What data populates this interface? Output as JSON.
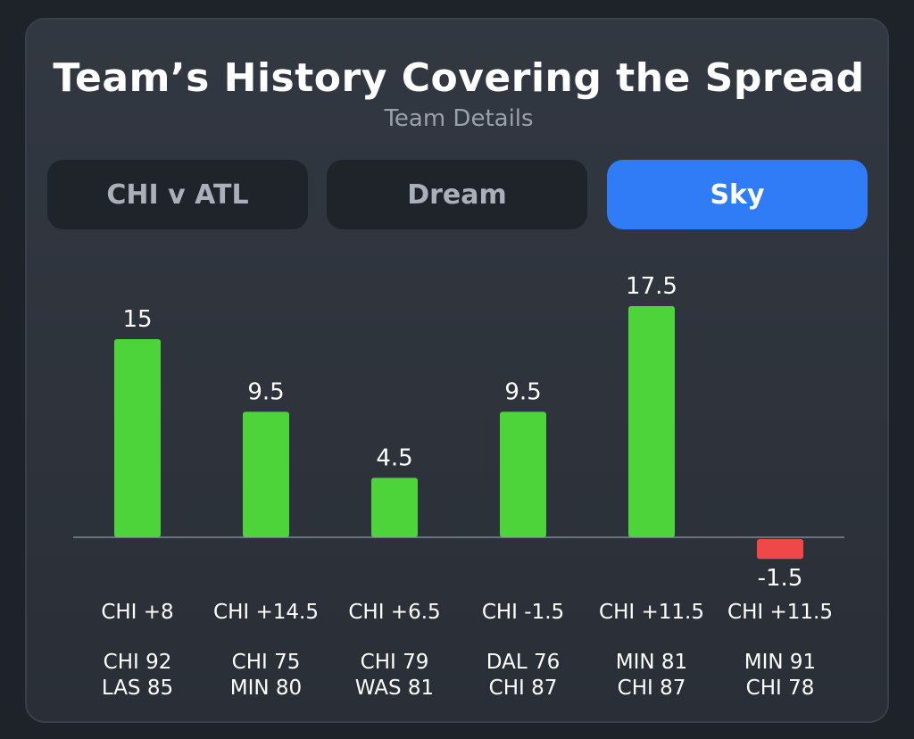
{
  "title": "Team’s History Covering the Spread",
  "subtitle": "Team Details",
  "tabs": [
    {
      "label": "CHI v ATL",
      "active": false
    },
    {
      "label": "Dream",
      "active": false
    },
    {
      "label": "Sky",
      "active": true
    }
  ],
  "colors": {
    "positive": "#4cd43a",
    "negative": "#f04848",
    "active_tab": "#2f7cf6",
    "baseline": "#6b7380"
  },
  "chart_data": {
    "type": "bar",
    "categories": [
      "CHI +8",
      "CHI +14.5",
      "CHI +6.5",
      "CHI -1.5",
      "CHI +11.5",
      "CHI +11.5"
    ],
    "values": [
      15,
      9.5,
      4.5,
      9.5,
      17.5,
      -1.5
    ],
    "value_labels": [
      "15",
      "9.5",
      "4.5",
      "9.5",
      "17.5",
      "-1.5"
    ],
    "scores": [
      [
        "CHI 92",
        "LAS 85"
      ],
      [
        "CHI 75",
        "MIN 80"
      ],
      [
        "CHI 79",
        "WAS 81"
      ],
      [
        "DAL 76",
        "CHI 87"
      ],
      [
        "MIN 81",
        "CHI 87"
      ],
      [
        "MIN 91",
        "CHI 78"
      ]
    ],
    "baseline": 0,
    "grid": false
  }
}
